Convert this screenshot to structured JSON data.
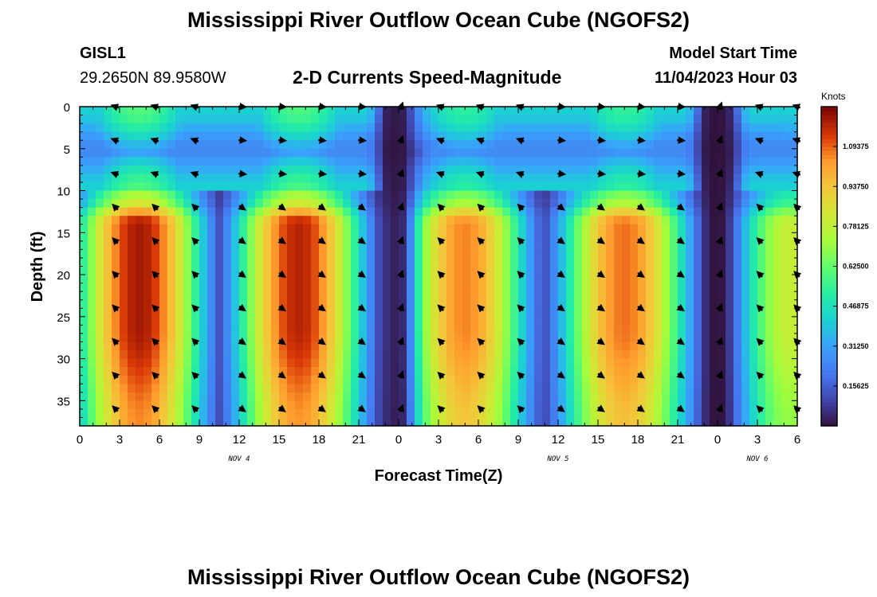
{
  "page": {
    "title": "Mississippi River Outflow Ocean Cube (NGOFS2)",
    "second_title": "Mississippi River Outflow Ocean Cube (NGOFS2)"
  },
  "station": {
    "id": "GISL1",
    "coords": "29.2650N  89.9580W"
  },
  "model": {
    "label": "Model Start Time",
    "value": "11/04/2023 Hour 03"
  },
  "chart_data": {
    "type": "heatmap",
    "title": "2-D Currents Speed-Magnitude",
    "xlabel": "Forecast Time(Z)",
    "ylabel": "Depth (ft)",
    "x_range_hours": [
      0,
      54
    ],
    "y_range_ft": [
      0,
      38
    ],
    "x_tick_hours": [
      0,
      3,
      6,
      9,
      12,
      15,
      18,
      21,
      24,
      27,
      30,
      33,
      36,
      39,
      42,
      45,
      48,
      51,
      54
    ],
    "x_tick_labels": [
      "0",
      "3",
      "6",
      "9",
      "12",
      "15",
      "18",
      "21",
      "0",
      "3",
      "6",
      "9",
      "12",
      "15",
      "18",
      "21",
      "0",
      "3",
      "6"
    ],
    "date_labels": [
      {
        "hour": 12,
        "text": "NOV 4"
      },
      {
        "hour": 36,
        "text": "NOV 5"
      },
      {
        "hour": 51,
        "text": "NOV 6"
      }
    ],
    "y_ticks": [
      0,
      5,
      10,
      15,
      20,
      25,
      30,
      35
    ],
    "colorbar": {
      "label": "Knots",
      "range": [
        0,
        1.25
      ],
      "ticks": [
        0.15625,
        0.3125,
        0.46875,
        0.625,
        0.78125,
        0.9375,
        1.09375
      ],
      "tick_labels": [
        "0.15625",
        "0.31250",
        "0.46875",
        "0.62500",
        "0.78125",
        "0.93750",
        "1.09375"
      ]
    },
    "cycles": [
      {
        "peak_hour": 4.5,
        "half_width_hours": 7.2,
        "amplitude_knots": 1.2,
        "direction": "ebb"
      },
      {
        "peak_hour": 16.5,
        "half_width_hours": 7.2,
        "amplitude_knots": 1.18,
        "direction": "flood"
      },
      {
        "peak_hour": 29.0,
        "half_width_hours": 7.0,
        "amplitude_knots": 1.06,
        "direction": "ebb"
      },
      {
        "peak_hour": 41.0,
        "half_width_hours": 7.2,
        "amplitude_knots": 1.08,
        "direction": "flood"
      },
      {
        "peak_hour": 53.5,
        "half_width_hours": 6.0,
        "amplitude_knots": 0.8,
        "direction": "ebb"
      }
    ],
    "slack_hours": [
      24.0,
      48.0
    ],
    "vector_times_hours": [
      2.7,
      5.7,
      8.7,
      12.2,
      15.2,
      18.2,
      21.2,
      24.2,
      27.2,
      30.2,
      33.2,
      36.2,
      39.2,
      42.2,
      45.2,
      48.2,
      51.2,
      54.0
    ],
    "vector_depths_ft": [
      0,
      4,
      8,
      12,
      16,
      20,
      24,
      28,
      32,
      36
    ]
  }
}
